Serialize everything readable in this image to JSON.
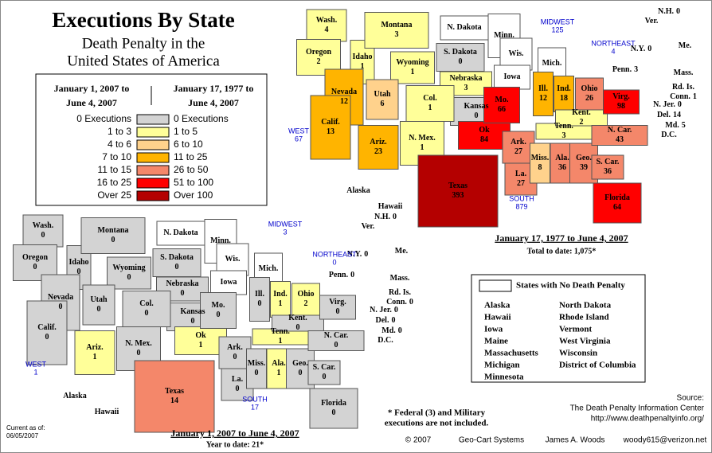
{
  "title": "Executions By State",
  "subtitle": [
    "Death Penalty in the",
    "United States of America"
  ],
  "legend": {
    "left_header": [
      "January 1, 2007 to",
      "June 4, 2007"
    ],
    "right_header": [
      "January 17, 1977 to",
      "June 4, 2007"
    ],
    "rows": [
      {
        "left": "0 Executions",
        "right": "0 Executions",
        "color": "#d3d3d3"
      },
      {
        "left": "1 to 3",
        "right": "1 to 5",
        "color": "#ffff99"
      },
      {
        "left": "4 to 6",
        "right": "6 to 10",
        "color": "#ffd28c"
      },
      {
        "left": "7 to 10",
        "right": "11 to 25",
        "color": "#ffb400"
      },
      {
        "left": "11 to 15",
        "right": "26 to 50",
        "color": "#f4876a"
      },
      {
        "left": "16 to 25",
        "right": "51 to 100",
        "color": "#ff0000"
      },
      {
        "left": "Over 25",
        "right": "Over 100",
        "color": "#b40000"
      }
    ]
  },
  "maps": [
    {
      "caption": "January 17, 1977 to June 4, 2007",
      "total": "Total to date: 1,075*",
      "regions": [
        {
          "name": "MIDWEST",
          "value": 125
        },
        {
          "name": "NORTHEAST",
          "value": 4
        },
        {
          "name": "WEST",
          "value": 67
        },
        {
          "name": "SOUTH",
          "value": 879
        }
      ],
      "states": [
        {
          "name": "Wash.",
          "value": 4,
          "color": "#ffff99"
        },
        {
          "name": "Oregon",
          "value": 2,
          "color": "#ffff99"
        },
        {
          "name": "Idaho",
          "value": 1,
          "color": "#ffff99"
        },
        {
          "name": "Montana",
          "value": 3,
          "color": "#ffff99"
        },
        {
          "name": "Wyoming",
          "value": 1,
          "color": "#ffff99"
        },
        {
          "name": "N. Dakota",
          "value": null,
          "color": "#ffffff"
        },
        {
          "name": "S. Dakota",
          "value": 0,
          "color": "#d3d3d3"
        },
        {
          "name": "Minn.",
          "value": null,
          "color": "#ffffff"
        },
        {
          "name": "Wis.",
          "value": null,
          "color": "#ffffff"
        },
        {
          "name": "Mich.",
          "value": null,
          "color": "#ffffff"
        },
        {
          "name": "Nebraska",
          "value": 3,
          "color": "#ffff99"
        },
        {
          "name": "Iowa",
          "value": null,
          "color": "#ffffff"
        },
        {
          "name": "Kansas",
          "value": 0,
          "color": "#d3d3d3"
        },
        {
          "name": "Nevada",
          "value": 12,
          "color": "#ffb400"
        },
        {
          "name": "Utah",
          "value": 6,
          "color": "#ffd28c"
        },
        {
          "name": "Col.",
          "value": 1,
          "color": "#ffff99"
        },
        {
          "name": "Calif.",
          "value": 13,
          "color": "#ffb400"
        },
        {
          "name": "Ariz.",
          "value": 23,
          "color": "#ffb400"
        },
        {
          "name": "N. Mex.",
          "value": 1,
          "color": "#ffff99"
        },
        {
          "name": "Texas",
          "value": 393,
          "color": "#b40000"
        },
        {
          "name": "Ok",
          "value": 84,
          "color": "#ff0000"
        },
        {
          "name": "Mo.",
          "value": 66,
          "color": "#ff0000"
        },
        {
          "name": "Ill.",
          "value": 12,
          "color": "#ffb400"
        },
        {
          "name": "Ind.",
          "value": 18,
          "color": "#ffb400"
        },
        {
          "name": "Ohio",
          "value": 26,
          "color": "#f4876a"
        },
        {
          "name": "Ark.",
          "value": 27,
          "color": "#f4876a"
        },
        {
          "name": "La.",
          "value": 27,
          "color": "#f4876a"
        },
        {
          "name": "Miss.",
          "value": 8,
          "color": "#ffd28c"
        },
        {
          "name": "Ala.",
          "value": 36,
          "color": "#f4876a"
        },
        {
          "name": "Geo.",
          "value": 39,
          "color": "#f4876a"
        },
        {
          "name": "Tenn.",
          "value": 3,
          "color": "#ffff99"
        },
        {
          "name": "Kent.",
          "value": 2,
          "color": "#ffff99"
        },
        {
          "name": "Virg.",
          "value": 98,
          "color": "#ff0000"
        },
        {
          "name": "N. Car.",
          "value": 43,
          "color": "#f4876a"
        },
        {
          "name": "S. Car.",
          "value": 36,
          "color": "#f4876a"
        },
        {
          "name": "Florida",
          "value": 64,
          "color": "#ff0000"
        },
        {
          "name": "Penn.",
          "value": 3,
          "color": "#ffff99"
        },
        {
          "name": "N.Y.",
          "value": 0,
          "color": "#d3d3d3"
        },
        {
          "name": "Ver.",
          "value": null,
          "color": "#ffffff"
        },
        {
          "name": "N.H.",
          "value": 0,
          "color": "#d3d3d3"
        },
        {
          "name": "Me.",
          "value": null,
          "color": "#ffffff"
        },
        {
          "name": "Mass.",
          "value": null,
          "color": "#ffffff"
        },
        {
          "name": "Rd. Is.",
          "value": null,
          "color": "#ffffff"
        },
        {
          "name": "Conn.",
          "value": 1,
          "color": "#ffff99"
        },
        {
          "name": "N. Jer.",
          "value": 0,
          "color": "#d3d3d3"
        },
        {
          "name": "Del.",
          "value": 14,
          "color": "#ffb400"
        },
        {
          "name": "Md.",
          "value": 5,
          "color": "#ffff99"
        },
        {
          "name": "D.C.",
          "value": null,
          "color": "#ffffff"
        },
        {
          "name": "Alaska",
          "value": null,
          "color": "#ffffff"
        },
        {
          "name": "Hawaii",
          "value": null,
          "color": "#ffffff"
        }
      ]
    },
    {
      "caption": "January 1, 2007 to June 4, 2007",
      "total": "Year to date: 21*",
      "regions": [
        {
          "name": "MIDWEST",
          "value": 3
        },
        {
          "name": "NORTHEAST",
          "value": 0
        },
        {
          "name": "WEST",
          "value": 1
        },
        {
          "name": "SOUTH",
          "value": 17
        }
      ],
      "states": [
        {
          "name": "Wash.",
          "value": 0,
          "color": "#d3d3d3"
        },
        {
          "name": "Oregon",
          "value": 0,
          "color": "#d3d3d3"
        },
        {
          "name": "Idaho",
          "value": 0,
          "color": "#d3d3d3"
        },
        {
          "name": "Montana",
          "value": 0,
          "color": "#d3d3d3"
        },
        {
          "name": "Wyoming",
          "value": 0,
          "color": "#d3d3d3"
        },
        {
          "name": "N. Dakota",
          "value": null,
          "color": "#ffffff"
        },
        {
          "name": "S. Dakota",
          "value": 0,
          "color": "#d3d3d3"
        },
        {
          "name": "Minn.",
          "value": null,
          "color": "#ffffff"
        },
        {
          "name": "Wis.",
          "value": null,
          "color": "#ffffff"
        },
        {
          "name": "Mich.",
          "value": null,
          "color": "#ffffff"
        },
        {
          "name": "Nebraska",
          "value": 0,
          "color": "#d3d3d3"
        },
        {
          "name": "Iowa",
          "value": null,
          "color": "#ffffff"
        },
        {
          "name": "Kansas",
          "value": 0,
          "color": "#d3d3d3"
        },
        {
          "name": "Nevada",
          "value": 0,
          "color": "#d3d3d3"
        },
        {
          "name": "Utah",
          "value": 0,
          "color": "#d3d3d3"
        },
        {
          "name": "Col.",
          "value": 0,
          "color": "#d3d3d3"
        },
        {
          "name": "Calif.",
          "value": 0,
          "color": "#d3d3d3"
        },
        {
          "name": "Ariz.",
          "value": 1,
          "color": "#ffff99"
        },
        {
          "name": "N. Mex.",
          "value": 0,
          "color": "#d3d3d3"
        },
        {
          "name": "Texas",
          "value": 14,
          "color": "#f4876a"
        },
        {
          "name": "Ok",
          "value": 1,
          "color": "#ffff99"
        },
        {
          "name": "Mo.",
          "value": 0,
          "color": "#d3d3d3"
        },
        {
          "name": "Ill.",
          "value": 0,
          "color": "#d3d3d3"
        },
        {
          "name": "Ind.",
          "value": 1,
          "color": "#ffff99"
        },
        {
          "name": "Ohio",
          "value": 2,
          "color": "#ffff99"
        },
        {
          "name": "Ark.",
          "value": 0,
          "color": "#d3d3d3"
        },
        {
          "name": "La.",
          "value": 0,
          "color": "#d3d3d3"
        },
        {
          "name": "Miss.",
          "value": 0,
          "color": "#d3d3d3"
        },
        {
          "name": "Ala.",
          "value": 1,
          "color": "#ffff99"
        },
        {
          "name": "Geo.",
          "value": 0,
          "color": "#d3d3d3"
        },
        {
          "name": "Tenn.",
          "value": 1,
          "color": "#ffff99"
        },
        {
          "name": "Kent.",
          "value": 0,
          "color": "#d3d3d3"
        },
        {
          "name": "Virg.",
          "value": 0,
          "color": "#d3d3d3"
        },
        {
          "name": "N. Car.",
          "value": 0,
          "color": "#d3d3d3"
        },
        {
          "name": "S. Car.",
          "value": 0,
          "color": "#d3d3d3"
        },
        {
          "name": "Florida",
          "value": 0,
          "color": "#d3d3d3"
        },
        {
          "name": "Penn.",
          "value": 0,
          "color": "#d3d3d3"
        },
        {
          "name": "N.Y.",
          "value": 0,
          "color": "#d3d3d3"
        },
        {
          "name": "Ver.",
          "value": null,
          "color": "#ffffff"
        },
        {
          "name": "N.H.",
          "value": 0,
          "color": "#d3d3d3"
        },
        {
          "name": "Me.",
          "value": null,
          "color": "#ffffff"
        },
        {
          "name": "Mass.",
          "value": null,
          "color": "#ffffff"
        },
        {
          "name": "Rd. Is.",
          "value": null,
          "color": "#ffffff"
        },
        {
          "name": "Conn.",
          "value": 0,
          "color": "#d3d3d3"
        },
        {
          "name": "N. Jer.",
          "value": 0,
          "color": "#d3d3d3"
        },
        {
          "name": "Del.",
          "value": 0,
          "color": "#d3d3d3"
        },
        {
          "name": "Md.",
          "value": 0,
          "color": "#d3d3d3"
        },
        {
          "name": "D.C.",
          "value": null,
          "color": "#ffffff"
        },
        {
          "name": "Alaska",
          "value": null,
          "color": "#ffffff"
        },
        {
          "name": "Hawaii",
          "value": null,
          "color": "#ffffff"
        }
      ]
    }
  ],
  "no_penalty": {
    "title": "States with No Death Penalty",
    "columns": [
      [
        "Alaska",
        "Hawaii",
        "Iowa",
        "Maine",
        "Massachusetts",
        "Michigan",
        "Minnesota"
      ],
      [
        "North Dakota",
        "Rhode Island",
        "Vermont",
        "West Virginia",
        "Wisconsin",
        "District of Columbia"
      ]
    ]
  },
  "footnote": [
    "* Federal (3) and Military",
    "executions are not included."
  ],
  "source": [
    "Source:",
    "The Death Penalty Information Center",
    "http://www.deathpenaltyinfo.org/"
  ],
  "credits": [
    "© 2007",
    "Geo-Cart Systems",
    "James A. Woods",
    "woody615@verizon.net"
  ],
  "current": [
    "Current as of:",
    "06/05/2007"
  ]
}
